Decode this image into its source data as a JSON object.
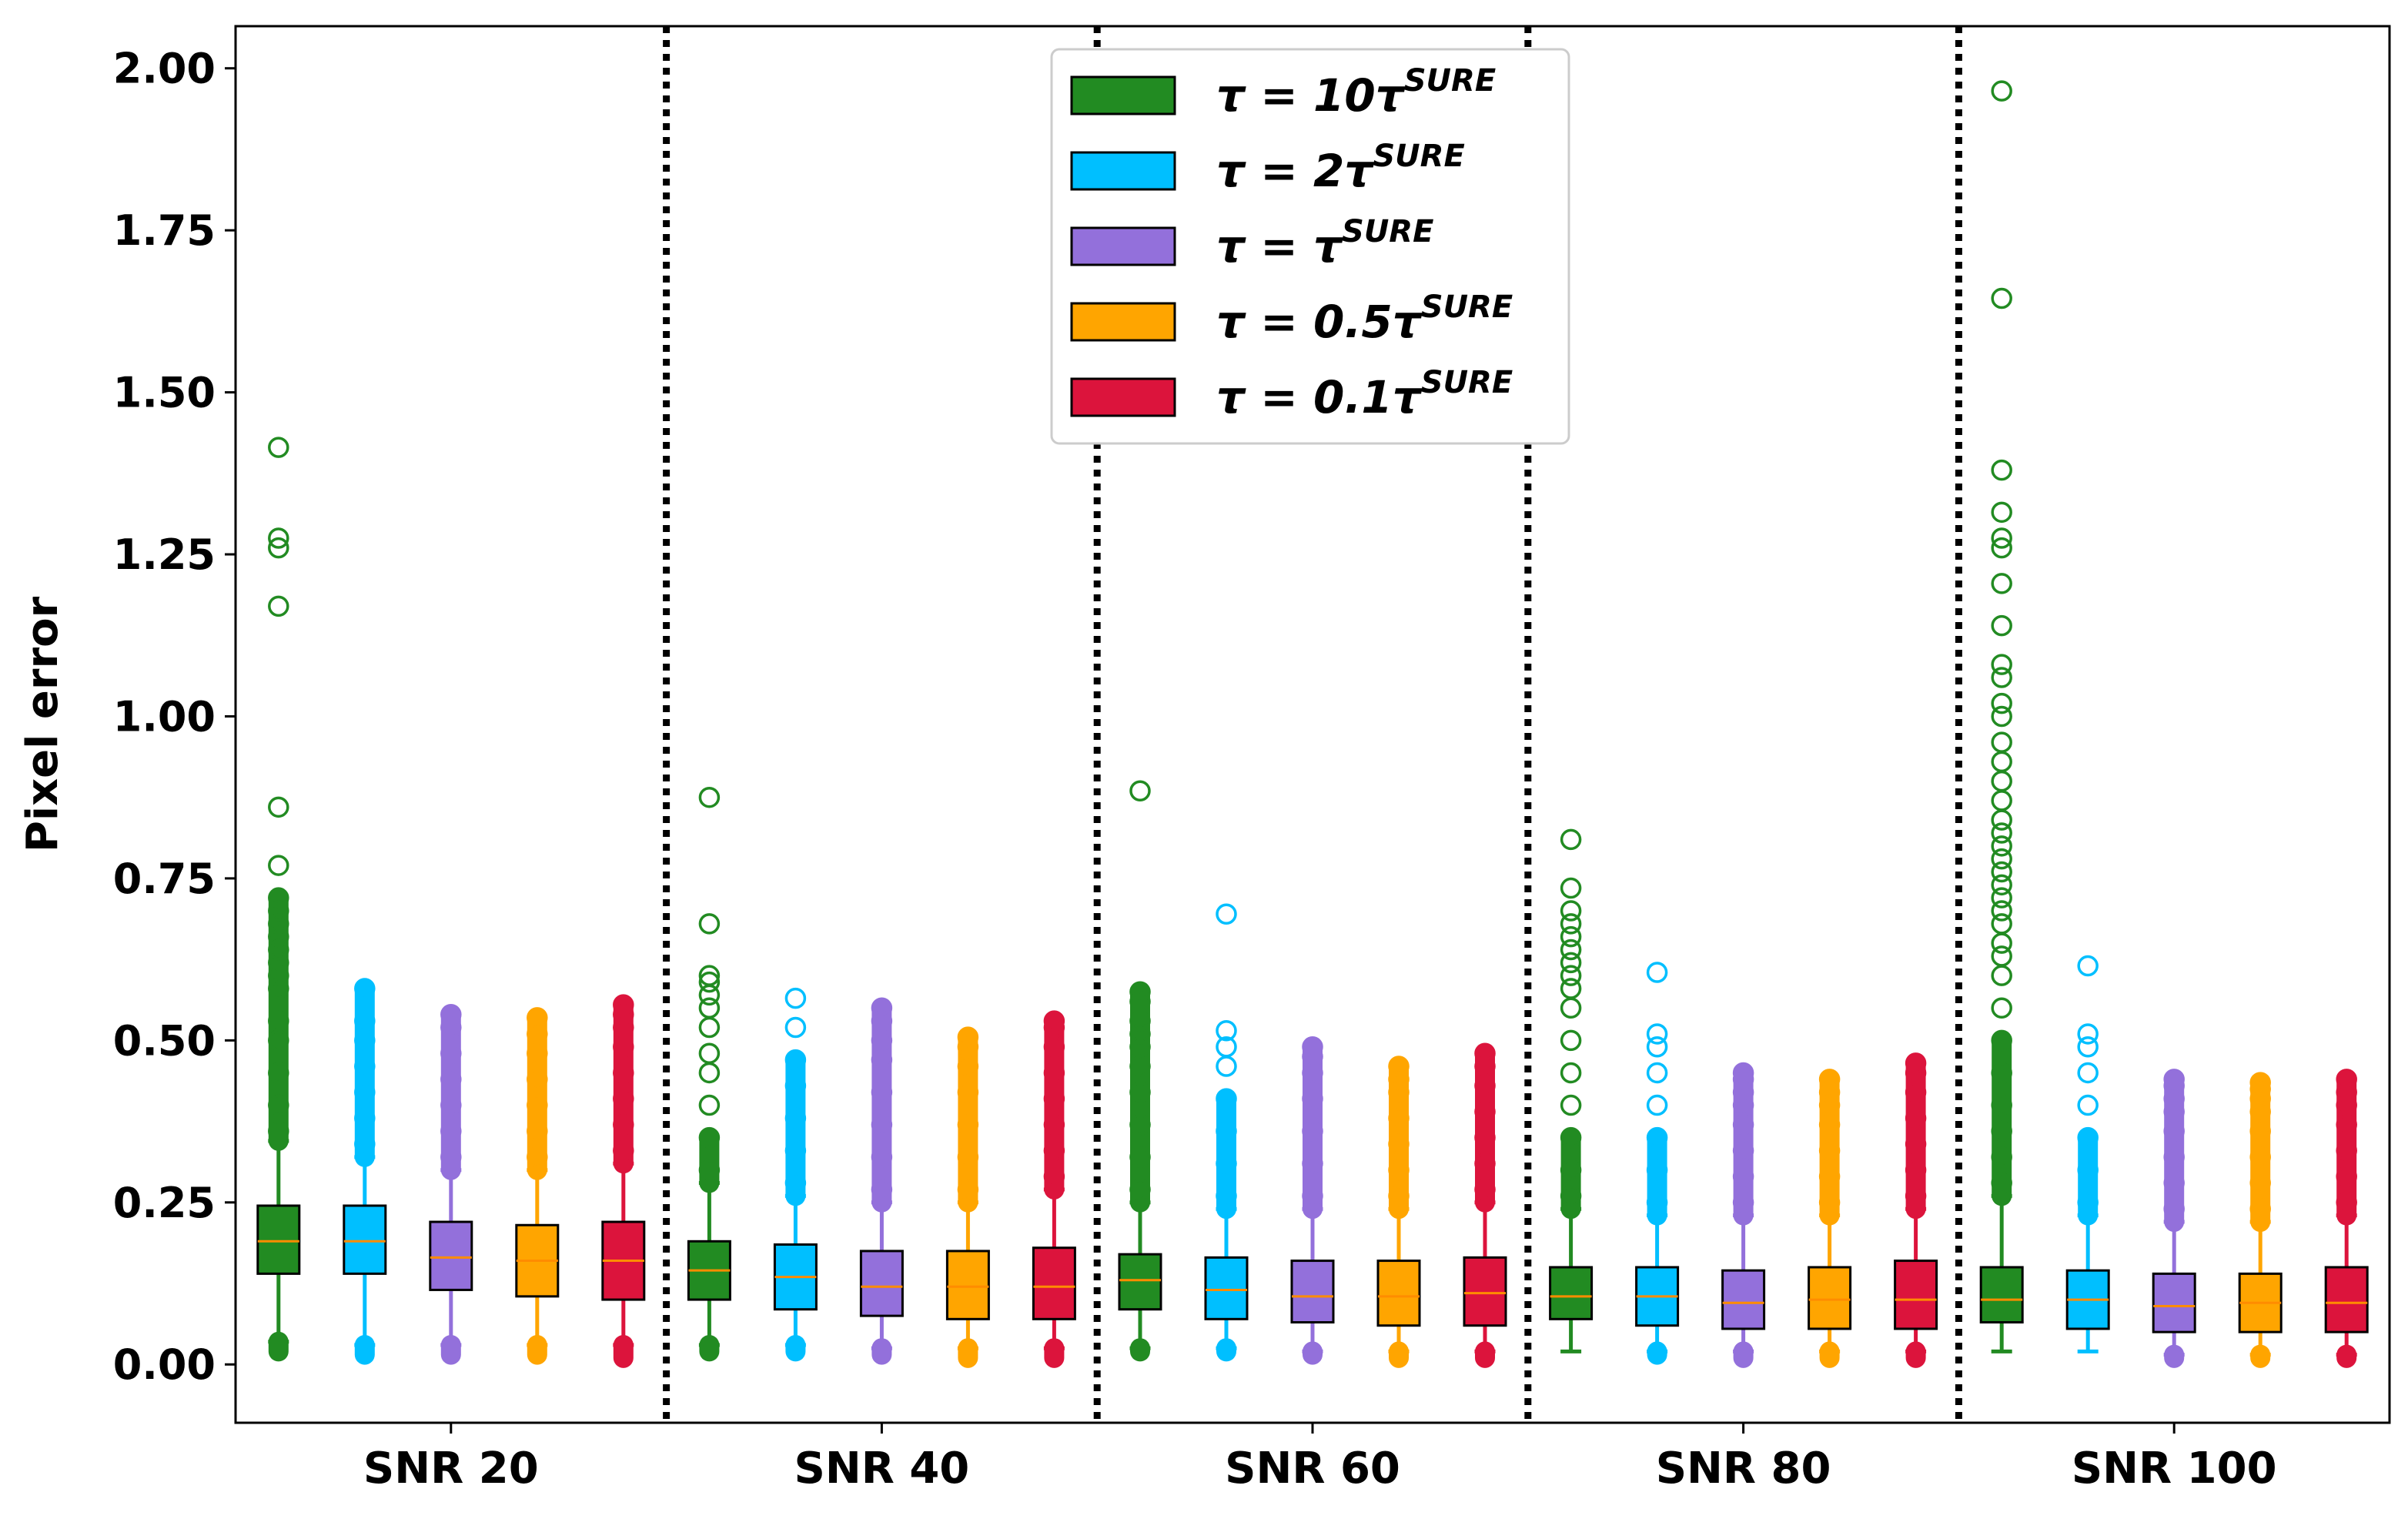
{
  "chart_data": {
    "type": "boxplot",
    "title": "",
    "xlabel": "",
    "ylabel": "Pixel error",
    "ylim": [
      -0.09,
      2.065
    ],
    "yticks": [
      "0.00",
      "0.25",
      "0.50",
      "0.75",
      "1.00",
      "1.25",
      "1.50",
      "1.75",
      "2.00"
    ],
    "ytick_values": [
      0.0,
      0.25,
      0.5,
      0.75,
      1.0,
      1.25,
      1.5,
      1.75,
      2.0
    ],
    "groups": [
      "SNR 20",
      "SNR 40",
      "SNR 60",
      "SNR 80",
      "SNR 100"
    ],
    "group_separators": "dotted vertical lines between groups",
    "legend_location": "upper center",
    "series": [
      {
        "name": "τ = 10τ^SURE",
        "legend_main": "τ = 10τ",
        "legend_sup": "SURE",
        "color": "#228B22",
        "boxes": [
          {
            "whislo": 0.035,
            "q1": 0.14,
            "med": 0.19,
            "q3": 0.245,
            "whishi": 0.345,
            "fliers_low_min": 0.02,
            "fliers": [
              0.36,
              0.4,
              0.45,
              0.5,
              0.53,
              0.58,
              0.6,
              0.62,
              0.64,
              0.66,
              0.68,
              0.7,
              0.72,
              0.77,
              0.86,
              1.17,
              1.26,
              1.275,
              1.415
            ]
          },
          {
            "whislo": 0.03,
            "q1": 0.1,
            "med": 0.145,
            "q3": 0.19,
            "whishi": 0.28,
            "fliers_low_min": 0.02,
            "fliers": [
              0.3,
              0.35,
              0.4,
              0.45,
              0.48,
              0.52,
              0.55,
              0.57,
              0.59,
              0.6,
              0.68,
              0.875
            ]
          },
          {
            "whislo": 0.025,
            "q1": 0.085,
            "med": 0.13,
            "q3": 0.17,
            "whishi": 0.25,
            "fliers_low_min": 0.02,
            "fliers": [
              0.27,
              0.32,
              0.37,
              0.42,
              0.46,
              0.49,
              0.51,
              0.53,
              0.56,
              0.575,
              0.885
            ]
          },
          {
            "whislo": 0.02,
            "q1": 0.07,
            "med": 0.105,
            "q3": 0.15,
            "whishi": 0.24,
            "fliers_low_min": 0.02,
            "fliers": [
              0.26,
              0.3,
              0.35,
              0.4,
              0.45,
              0.5,
              0.55,
              0.58,
              0.6,
              0.62,
              0.64,
              0.66,
              0.68,
              0.7,
              0.735,
              0.81
            ]
          },
          {
            "whislo": 0.02,
            "q1": 0.065,
            "med": 0.1,
            "q3": 0.15,
            "whishi": 0.26,
            "fliers_low_min": 0.02,
            "fliers": [
              0.28,
              0.32,
              0.36,
              0.4,
              0.45,
              0.5,
              0.55,
              0.6,
              0.63,
              0.65,
              0.68,
              0.7,
              0.72,
              0.74,
              0.76,
              0.78,
              0.8,
              0.82,
              0.84,
              0.87,
              0.9,
              0.93,
              0.96,
              1.0,
              1.02,
              1.06,
              1.08,
              1.14,
              1.205,
              1.26,
              1.275,
              1.315,
              1.38,
              1.645,
              1.965
            ]
          }
        ]
      },
      {
        "name": "τ = 2τ^SURE",
        "legend_main": "τ = 2τ",
        "legend_sup": "SURE",
        "color": "#00BFFF",
        "boxes": [
          {
            "whislo": 0.03,
            "q1": 0.14,
            "med": 0.19,
            "q3": 0.245,
            "whishi": 0.32,
            "fliers_low_min": 0.015,
            "fliers": [
              0.34,
              0.38,
              0.42,
              0.46,
              0.5,
              0.53,
              0.58
            ]
          },
          {
            "whislo": 0.03,
            "q1": 0.085,
            "med": 0.135,
            "q3": 0.185,
            "whishi": 0.26,
            "fliers_low_min": 0.02,
            "fliers": [
              0.28,
              0.33,
              0.38,
              0.43,
              0.47,
              0.52,
              0.565
            ]
          },
          {
            "whislo": 0.025,
            "q1": 0.07,
            "med": 0.115,
            "q3": 0.165,
            "whishi": 0.24,
            "fliers_low_min": 0.02,
            "fliers": [
              0.26,
              0.31,
              0.36,
              0.41,
              0.46,
              0.49,
              0.515,
              0.695
            ]
          },
          {
            "whislo": 0.02,
            "q1": 0.06,
            "med": 0.105,
            "q3": 0.15,
            "whishi": 0.23,
            "fliers_low_min": 0.015,
            "fliers": [
              0.25,
              0.3,
              0.35,
              0.4,
              0.45,
              0.49,
              0.51,
              0.605
            ]
          },
          {
            "whislo": 0.02,
            "q1": 0.055,
            "med": 0.1,
            "q3": 0.145,
            "whishi": 0.23,
            "fliers_low_min": 0.02,
            "fliers": [
              0.25,
              0.3,
              0.35,
              0.4,
              0.45,
              0.49,
              0.51,
              0.615
            ]
          }
        ]
      },
      {
        "name": "τ = τ^SURE",
        "legend_main": "τ = τ",
        "legend_sup": "SURE",
        "color": "#9370DB",
        "boxes": [
          {
            "whislo": 0.03,
            "q1": 0.115,
            "med": 0.165,
            "q3": 0.22,
            "whishi": 0.3,
            "fliers_low_min": 0.015,
            "fliers": [
              0.32,
              0.36,
              0.4,
              0.44,
              0.48,
              0.52,
              0.54
            ]
          },
          {
            "whislo": 0.025,
            "q1": 0.075,
            "med": 0.12,
            "q3": 0.175,
            "whishi": 0.25,
            "fliers_low_min": 0.015,
            "fliers": [
              0.27,
              0.32,
              0.37,
              0.42,
              0.47,
              0.5,
              0.53,
              0.55
            ]
          },
          {
            "whislo": 0.02,
            "q1": 0.065,
            "med": 0.105,
            "q3": 0.16,
            "whishi": 0.24,
            "fliers_low_min": 0.015,
            "fliers": [
              0.26,
              0.31,
              0.36,
              0.41,
              0.45,
              0.475,
              0.49
            ]
          },
          {
            "whislo": 0.02,
            "q1": 0.055,
            "med": 0.095,
            "q3": 0.145,
            "whishi": 0.23,
            "fliers_low_min": 0.01,
            "fliers": [
              0.25,
              0.29,
              0.33,
              0.37,
              0.4,
              0.42,
              0.44,
              0.45
            ]
          },
          {
            "whislo": 0.015,
            "q1": 0.05,
            "med": 0.09,
            "q3": 0.14,
            "whishi": 0.22,
            "fliers_low_min": 0.01,
            "fliers": [
              0.24,
              0.28,
              0.32,
              0.36,
              0.39,
              0.41,
              0.43,
              0.44
            ]
          }
        ]
      },
      {
        "name": "τ = 0.5τ^SURE",
        "legend_main": "τ = 0.5τ",
        "legend_sup": "SURE",
        "color": "#FFA500",
        "boxes": [
          {
            "whislo": 0.03,
            "q1": 0.105,
            "med": 0.16,
            "q3": 0.215,
            "whishi": 0.3,
            "fliers_low_min": 0.015,
            "fliers": [
              0.32,
              0.36,
              0.4,
              0.44,
              0.48,
              0.51,
              0.535
            ]
          },
          {
            "whislo": 0.025,
            "q1": 0.07,
            "med": 0.12,
            "q3": 0.175,
            "whishi": 0.25,
            "fliers_low_min": 0.01,
            "fliers": [
              0.27,
              0.32,
              0.37,
              0.42,
              0.46,
              0.49,
              0.505
            ]
          },
          {
            "whislo": 0.02,
            "q1": 0.06,
            "med": 0.105,
            "q3": 0.16,
            "whishi": 0.24,
            "fliers_low_min": 0.01,
            "fliers": [
              0.26,
              0.3,
              0.34,
              0.38,
              0.42,
              0.44,
              0.46
            ]
          },
          {
            "whislo": 0.02,
            "q1": 0.055,
            "med": 0.1,
            "q3": 0.15,
            "whishi": 0.23,
            "fliers_low_min": 0.01,
            "fliers": [
              0.25,
              0.29,
              0.33,
              0.37,
              0.4,
              0.42,
              0.44
            ]
          },
          {
            "whislo": 0.015,
            "q1": 0.05,
            "med": 0.095,
            "q3": 0.14,
            "whishi": 0.22,
            "fliers_low_min": 0.01,
            "fliers": [
              0.24,
              0.28,
              0.32,
              0.36,
              0.39,
              0.41,
              0.425,
              0.435
            ]
          }
        ]
      },
      {
        "name": "τ = 0.1τ^SURE",
        "legend_main": "τ = 0.1τ",
        "legend_sup": "SURE",
        "color": "#DC143C",
        "boxes": [
          {
            "whislo": 0.03,
            "q1": 0.1,
            "med": 0.16,
            "q3": 0.22,
            "whishi": 0.31,
            "fliers_low_min": 0.01,
            "fliers": [
              0.33,
              0.37,
              0.41,
              0.45,
              0.49,
              0.52,
              0.54,
              0.555
            ]
          },
          {
            "whislo": 0.025,
            "q1": 0.07,
            "med": 0.12,
            "q3": 0.18,
            "whishi": 0.27,
            "fliers_low_min": 0.01,
            "fliers": [
              0.29,
              0.33,
              0.37,
              0.41,
              0.45,
              0.49,
              0.52,
              0.53
            ]
          },
          {
            "whislo": 0.02,
            "q1": 0.06,
            "med": 0.11,
            "q3": 0.165,
            "whishi": 0.25,
            "fliers_low_min": 0.01,
            "fliers": [
              0.27,
              0.31,
              0.35,
              0.39,
              0.43,
              0.46,
              0.48
            ]
          },
          {
            "whislo": 0.02,
            "q1": 0.055,
            "med": 0.1,
            "q3": 0.16,
            "whishi": 0.24,
            "fliers_low_min": 0.01,
            "fliers": [
              0.26,
              0.3,
              0.34,
              0.38,
              0.42,
              0.45,
              0.465
            ]
          },
          {
            "whislo": 0.015,
            "q1": 0.05,
            "med": 0.095,
            "q3": 0.15,
            "whishi": 0.23,
            "fliers_low_min": 0.01,
            "fliers": [
              0.25,
              0.29,
              0.33,
              0.37,
              0.4,
              0.42,
              0.44
            ]
          }
        ]
      }
    ],
    "median_color": "#FF8C00"
  }
}
